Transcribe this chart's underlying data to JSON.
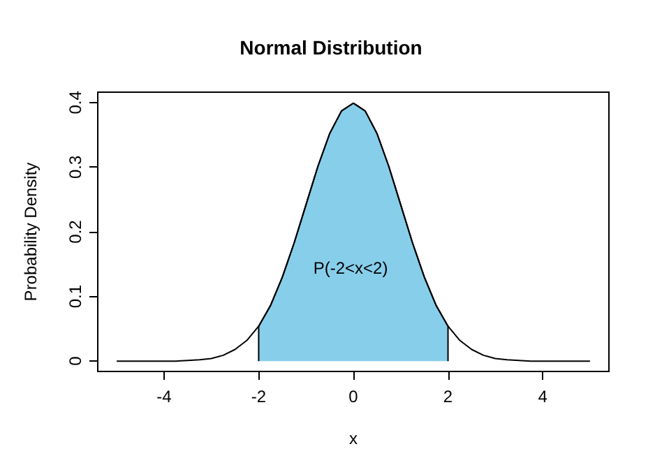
{
  "chart_data": {
    "type": "line",
    "title": "Normal Distribution",
    "xlabel": "x",
    "ylabel": "Probability Density",
    "xlim": [
      -5.4,
      5.4
    ],
    "xticks": [
      -4,
      -2,
      0,
      2,
      4
    ],
    "ylim": [
      -0.016,
      0.416
    ],
    "yticks": [
      0,
      0.1,
      0.2,
      0.3,
      0.4
    ],
    "grid": false,
    "marker": "none",
    "line_style": "solid",
    "annotations": [
      "P(-2<x<2)"
    ],
    "series": [
      {
        "type": "area",
        "color": "#87ceeb",
        "x": [
          -2,
          -2,
          -1.75,
          -1.5,
          -1.25,
          -1,
          -0.75,
          -0.5,
          -0.25,
          0,
          0.25,
          0.5,
          0.75,
          1,
          1.25,
          1.5,
          1.75,
          2,
          2
        ],
        "values": [
          0,
          0.054,
          0.086,
          0.13,
          0.183,
          0.242,
          0.301,
          0.352,
          0.387,
          0.399,
          0.387,
          0.352,
          0.301,
          0.242,
          0.183,
          0.13,
          0.086,
          0.054,
          0
        ]
      },
      {
        "color": "#000000",
        "x": [
          -5,
          -4.75,
          -4.5,
          -4.25,
          -4,
          -3.75,
          -3.5,
          -3.25,
          -3,
          -2.75,
          -2.5,
          -2.25,
          -2,
          -1.75,
          -1.5,
          -1.25,
          -1,
          -0.75,
          -0.5,
          -0.25,
          0,
          0.25,
          0.5,
          0.75,
          1,
          1.25,
          1.5,
          1.75,
          2,
          2.25,
          2.5,
          2.75,
          3,
          3.25,
          3.5,
          3.75,
          4,
          4.25,
          4.5,
          4.75,
          5
        ],
        "values": [
          0,
          0,
          0,
          0,
          0.0,
          0.0,
          0.001,
          0.002,
          0.004,
          0.009,
          0.018,
          0.032,
          0.054,
          0.086,
          0.13,
          0.183,
          0.242,
          0.301,
          0.352,
          0.387,
          0.399,
          0.387,
          0.352,
          0.301,
          0.242,
          0.183,
          0.13,
          0.086,
          0.054,
          0.032,
          0.018,
          0.009,
          0.004,
          0.002,
          0.001,
          0.0,
          0.0,
          0,
          0,
          0,
          0
        ]
      }
    ]
  }
}
